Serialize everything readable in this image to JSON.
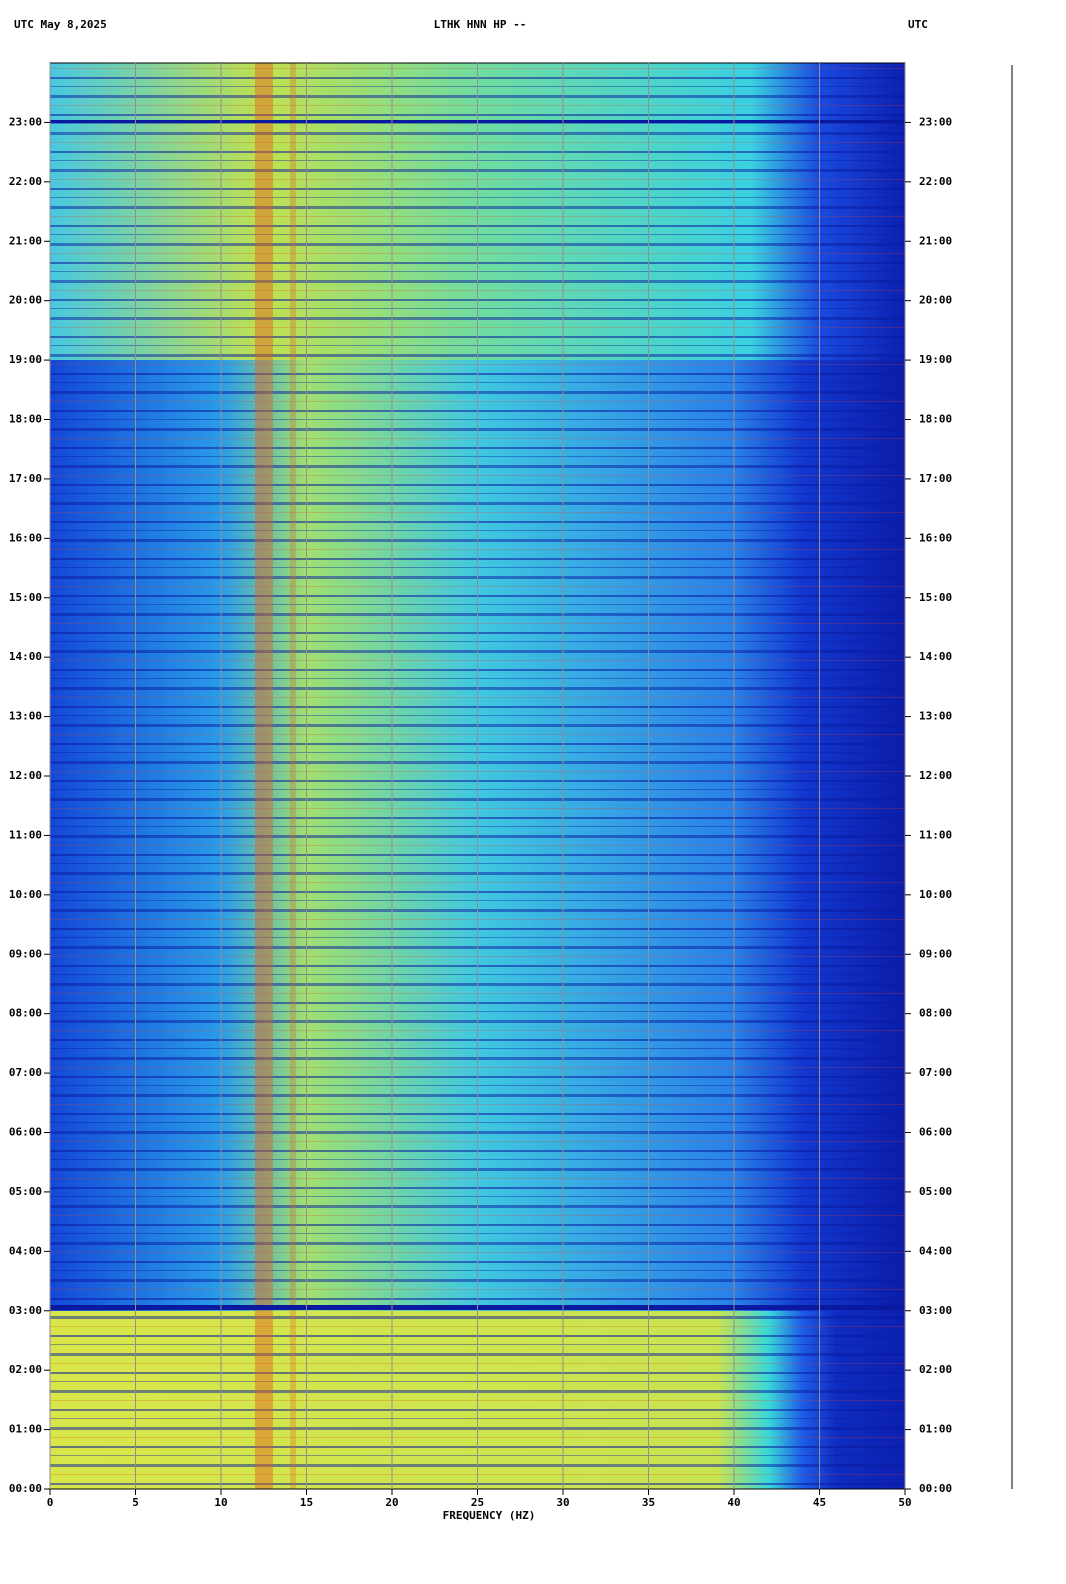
{
  "chart_data": {
    "type": "spectrogram",
    "header_left": "UTC  May 8,2025",
    "title": "LTHK HNN HP --",
    "header_right": "UTC",
    "xlabel": "FREQUENCY (HZ)",
    "xlim": [
      0,
      50
    ],
    "xticks": [
      0,
      5,
      10,
      15,
      20,
      25,
      30,
      35,
      40,
      45,
      50
    ],
    "ylim": [
      0,
      24
    ],
    "yticks": [
      {
        "value": 0,
        "label": "00:00"
      },
      {
        "value": 1,
        "label": "01:00"
      },
      {
        "value": 2,
        "label": "02:00"
      },
      {
        "value": 3,
        "label": "03:00"
      },
      {
        "value": 4,
        "label": "04:00"
      },
      {
        "value": 5,
        "label": "05:00"
      },
      {
        "value": 6,
        "label": "06:00"
      },
      {
        "value": 7,
        "label": "07:00"
      },
      {
        "value": 8,
        "label": "08:00"
      },
      {
        "value": 9,
        "label": "09:00"
      },
      {
        "value": 10,
        "label": "10:00"
      },
      {
        "value": 11,
        "label": "11:00"
      },
      {
        "value": 12,
        "label": "12:00"
      },
      {
        "value": 13,
        "label": "13:00"
      },
      {
        "value": 14,
        "label": "14:00"
      },
      {
        "value": 15,
        "label": "15:00"
      },
      {
        "value": 16,
        "label": "16:00"
      },
      {
        "value": 17,
        "label": "17:00"
      },
      {
        "value": 18,
        "label": "18:00"
      },
      {
        "value": 19,
        "label": "19:00"
      },
      {
        "value": 20,
        "label": "20:00"
      },
      {
        "value": 21,
        "label": "21:00"
      },
      {
        "value": 22,
        "label": "22:00"
      },
      {
        "value": 23,
        "label": "23:00"
      }
    ],
    "grid": true
  }
}
